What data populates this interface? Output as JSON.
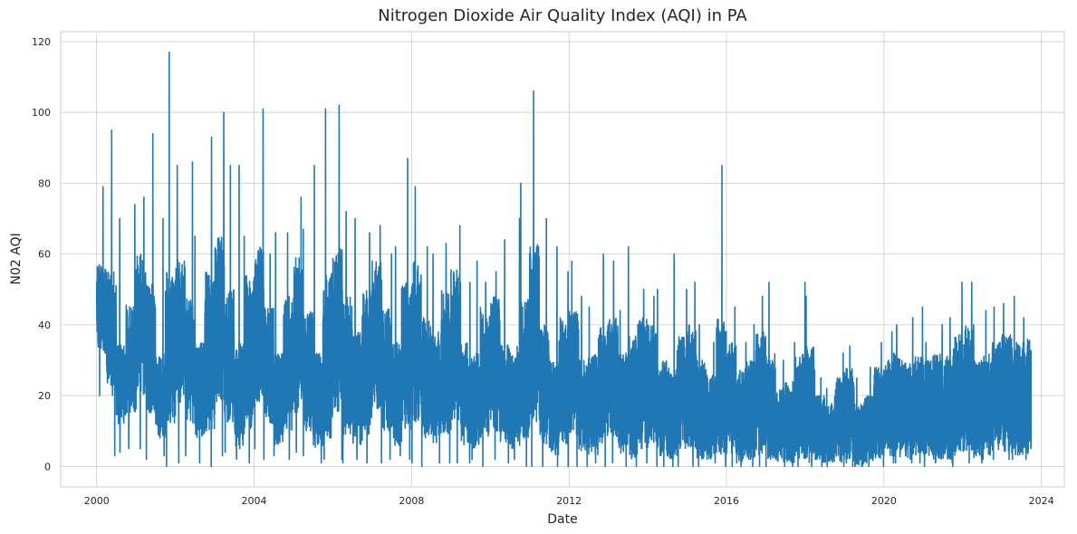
{
  "chart_data": {
    "type": "line",
    "title": "Nitrogen Dioxide Air Quality Index (AQI) in PA",
    "xlabel": "Date",
    "ylabel": "N02 AQI",
    "x_axis_kind": "date",
    "xlim": [
      "1999-02-01",
      "2024-08-01"
    ],
    "ylim": [
      -5.8,
      122.8
    ],
    "x_ticks": [
      "2000",
      "2004",
      "2008",
      "2012",
      "2016",
      "2020",
      "2024"
    ],
    "y_ticks": [
      0,
      20,
      40,
      60,
      80,
      100,
      120
    ],
    "grid": true,
    "line_color": "#1f77b4",
    "series": [
      {
        "x": [
          "2000-01-01",
          "2000-04-01",
          "2000-07-01",
          "2000-10-01",
          "2001-01-01",
          "2001-04-01",
          "2001-07-01",
          "2001-10-01",
          "2002-01-01",
          "2002-04-01",
          "2002-07-01",
          "2002-10-01",
          "2003-01-01",
          "2003-04-01",
          "2003-07-01",
          "2003-10-01",
          "2004-01-01",
          "2004-04-01",
          "2004-07-01",
          "2004-10-01",
          "2005-01-01",
          "2005-04-01",
          "2005-07-01",
          "2005-10-01",
          "2006-01-01",
          "2006-04-01",
          "2006-07-01",
          "2006-10-01",
          "2007-01-01",
          "2007-04-01",
          "2007-07-01",
          "2007-10-01",
          "2008-01-01",
          "2008-04-01",
          "2008-07-01",
          "2008-10-01",
          "2009-01-01",
          "2009-04-01",
          "2009-07-01",
          "2009-10-01",
          "2010-01-01",
          "2010-04-01",
          "2010-07-01",
          "2010-10-01",
          "2011-01-01",
          "2011-04-01",
          "2011-07-01",
          "2011-10-01",
          "2012-01-01",
          "2012-04-01",
          "2012-07-01",
          "2012-10-01",
          "2013-01-01",
          "2013-04-01",
          "2013-07-01",
          "2013-10-01",
          "2014-01-01",
          "2014-04-01",
          "2014-07-01",
          "2014-10-01",
          "2015-01-01",
          "2015-04-01",
          "2015-07-01",
          "2015-10-01",
          "2016-01-01",
          "2016-04-01",
          "2016-07-01",
          "2016-10-01",
          "2017-01-01",
          "2017-04-01",
          "2017-07-01",
          "2017-10-01",
          "2018-01-01",
          "2018-04-01",
          "2018-07-01",
          "2018-10-01",
          "2019-01-01",
          "2019-04-01",
          "2019-07-01",
          "2019-10-01",
          "2020-01-01",
          "2020-04-01",
          "2020-07-01",
          "2020-10-01",
          "2021-01-01",
          "2021-04-01",
          "2021-07-01",
          "2021-10-01",
          "2022-01-01",
          "2022-04-01",
          "2022-07-01",
          "2022-10-01",
          "2023-01-01",
          "2023-04-01",
          "2023-07-01"
        ],
        "max": [
          79,
          95,
          70,
          74,
          76,
          94,
          70,
          117,
          85,
          86,
          65,
          93,
          100,
          85,
          85,
          65,
          101,
          60,
          66,
          66,
          76,
          67,
          85,
          101,
          102,
          72,
          70,
          66,
          68,
          60,
          62,
          87,
          79,
          62,
          60,
          63,
          68,
          52,
          58,
          52,
          55,
          64,
          70,
          80,
          106,
          70,
          62,
          55,
          58,
          48,
          45,
          60,
          58,
          44,
          62,
          50,
          48,
          50,
          60,
          50,
          52,
          40,
          35,
          85,
          45,
          35,
          40,
          48,
          52,
          30,
          35,
          52,
          48,
          25,
          22,
          32,
          34,
          25,
          28,
          35,
          38,
          40,
          42,
          45,
          35,
          40,
          42,
          52,
          52,
          40,
          44,
          45,
          46,
          48,
          42
        ],
        "min": [
          20,
          3,
          4,
          5,
          5,
          2,
          3,
          0,
          1,
          3,
          1,
          0,
          3,
          4,
          2,
          1,
          5,
          2,
          3,
          2,
          4,
          3,
          1,
          2,
          2,
          1,
          2,
          1,
          1,
          2,
          3,
          2,
          1,
          0,
          1,
          1,
          1,
          1,
          2,
          0,
          2,
          1,
          2,
          0,
          0,
          0,
          0,
          0,
          0,
          0,
          1,
          0,
          1,
          0,
          0,
          1,
          0,
          0,
          0,
          0,
          0,
          0,
          1,
          0,
          0,
          0,
          0,
          0,
          0,
          0,
          0,
          0,
          0,
          0,
          0,
          0,
          0,
          0,
          0,
          0,
          1,
          1,
          1,
          1,
          0,
          1,
          1,
          0,
          1,
          1,
          2,
          2,
          2,
          2,
          2
        ],
        "upper": [
          58,
          55,
          35,
          46,
          60,
          52,
          32,
          55,
          60,
          48,
          35,
          55,
          65,
          50,
          35,
          55,
          62,
          45,
          33,
          48,
          60,
          45,
          32,
          55,
          62,
          48,
          38,
          50,
          58,
          45,
          35,
          52,
          58,
          42,
          38,
          50,
          56,
          35,
          32,
          45,
          48,
          35,
          34,
          48,
          65,
          40,
          30,
          42,
          45,
          30,
          32,
          40,
          42,
          32,
          38,
          42,
          40,
          30,
          28,
          38,
          40,
          30,
          26,
          42,
          35,
          28,
          30,
          38,
          32,
          22,
          24,
          32,
          34,
          20,
          18,
          25,
          28,
          18,
          20,
          28,
          30,
          32,
          30,
          33,
          30,
          32,
          32,
          38,
          40,
          30,
          32,
          36,
          38,
          35,
          36
        ],
        "lower": [
          32,
          20,
          12,
          15,
          20,
          15,
          8,
          12,
          18,
          12,
          8,
          10,
          18,
          12,
          5,
          10,
          18,
          12,
          6,
          10,
          15,
          10,
          5,
          8,
          15,
          8,
          6,
          8,
          15,
          10,
          6,
          10,
          12,
          8,
          6,
          8,
          12,
          6,
          5,
          8,
          10,
          6,
          5,
          8,
          12,
          6,
          3,
          6,
          8,
          4,
          3,
          6,
          8,
          3,
          2,
          5,
          6,
          3,
          2,
          5,
          5,
          2,
          2,
          3,
          3,
          1,
          2,
          3,
          2,
          1,
          1,
          2,
          1,
          1,
          1,
          1,
          1,
          0,
          1,
          2,
          3,
          2,
          2,
          3,
          3,
          2,
          2,
          3,
          4,
          2,
          3,
          4,
          4,
          3,
          3
        ]
      }
    ]
  }
}
